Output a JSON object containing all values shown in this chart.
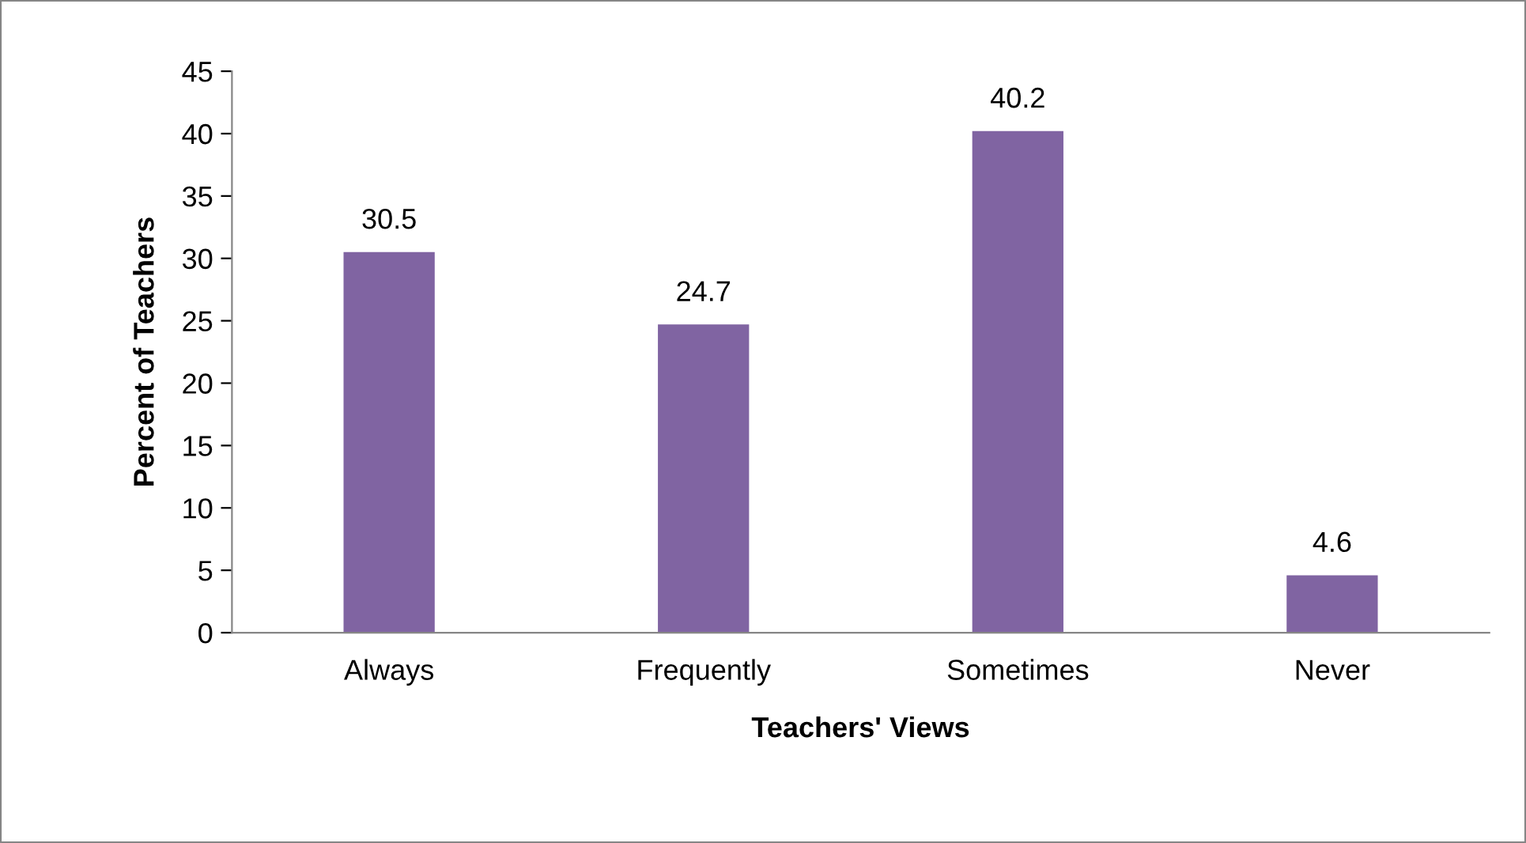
{
  "chart_data": {
    "type": "bar",
    "xlabel": "Teachers' Views",
    "ylabel": "Percent of Teachers",
    "categories": [
      "Always",
      "Frequently",
      "Sometimes",
      "Never"
    ],
    "values": [
      30.5,
      24.7,
      40.2,
      4.6
    ],
    "color": "#8064a2",
    "ylim": [
      0,
      45
    ],
    "yticks": [
      0,
      5,
      10,
      15,
      20,
      25,
      30,
      35,
      40,
      45
    ],
    "grid": false,
    "legend": false,
    "data_labels": true
  }
}
